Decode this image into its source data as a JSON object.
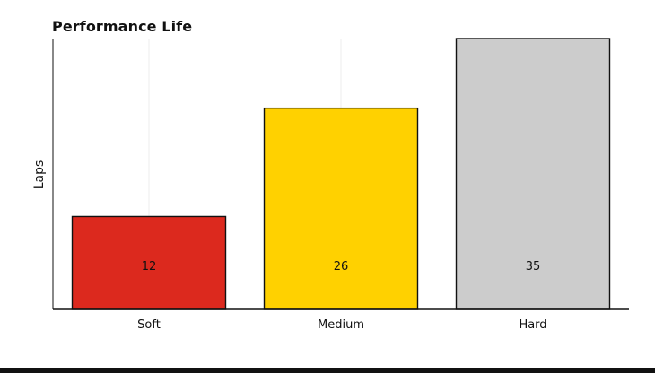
{
  "chart_data": {
    "type": "bar",
    "title": "Performance Life",
    "xlabel": "",
    "ylabel": "Laps",
    "categories": [
      "Soft",
      "Medium",
      "Hard"
    ],
    "values": [
      12,
      26,
      35
    ],
    "data_labels": [
      "12",
      "26",
      "35"
    ],
    "bar_colors": [
      "#dc291e",
      "#ffd100",
      "#cccccc"
    ],
    "ylim": [
      0,
      35
    ],
    "grid": "vertical lines",
    "legend": "none"
  },
  "colors": {
    "axis": "#111111",
    "bar_edge": "#111111",
    "gridline": "#eeeeee",
    "bottom_strip": "#111111"
  }
}
